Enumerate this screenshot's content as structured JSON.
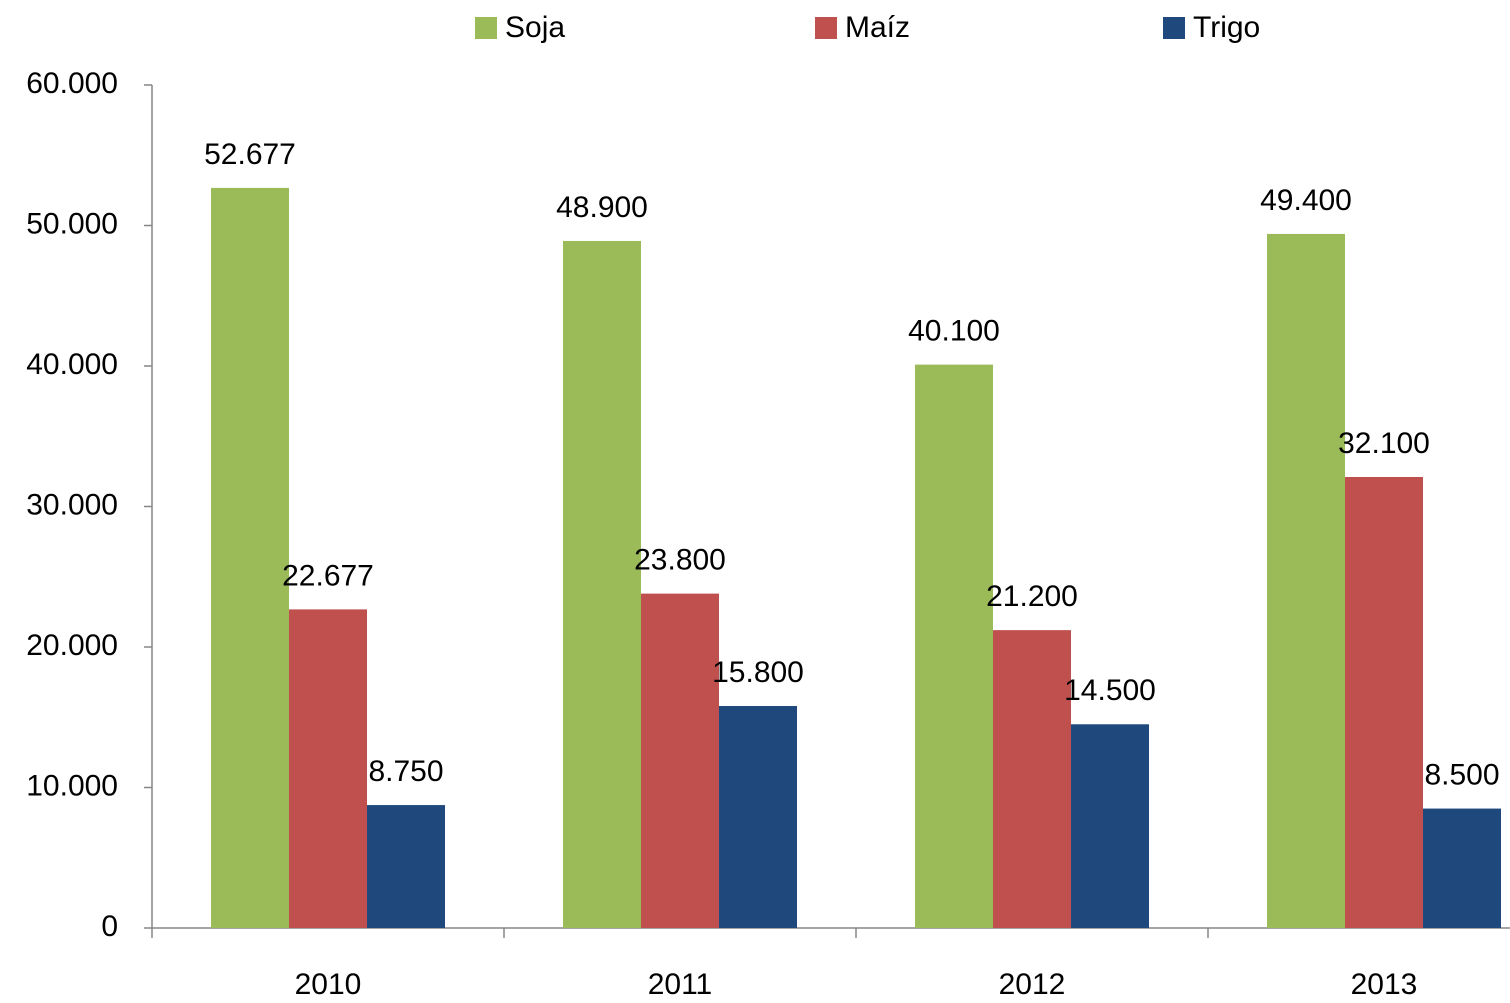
{
  "chart_data": {
    "type": "bar",
    "categories": [
      "2010",
      "2011",
      "2012",
      "2013"
    ],
    "series": [
      {
        "name": "Soja",
        "color": "#9bbb59",
        "values": [
          52677,
          48900,
          40100,
          49400
        ],
        "value_labels": [
          "52.677",
          "48.900",
          "40.100",
          "49.400"
        ]
      },
      {
        "name": "Maíz",
        "color": "#c0504d",
        "values": [
          22677,
          23800,
          21200,
          32100
        ],
        "value_labels": [
          "22.677",
          "23.800",
          "21.200",
          "32.100"
        ]
      },
      {
        "name": "Trigo",
        "color": "#1f497d",
        "values": [
          8750,
          15800,
          14500,
          8500
        ],
        "value_labels": [
          "8.750",
          "15.800",
          "14.500",
          "8.500"
        ]
      }
    ],
    "ylim": [
      0,
      60000
    ],
    "yticks": [
      0,
      {
        "value": 10000,
        "label": "10.000"
      },
      {
        "value": 20000,
        "label": "20.000"
      },
      {
        "value": 30000,
        "label": "30.000"
      },
      {
        "value": 40000,
        "label": "40.000"
      },
      {
        "value": 50000,
        "label": "50.000"
      },
      {
        "value": 60000,
        "label": "60.000"
      }
    ],
    "legend": "top",
    "grid": false
  }
}
